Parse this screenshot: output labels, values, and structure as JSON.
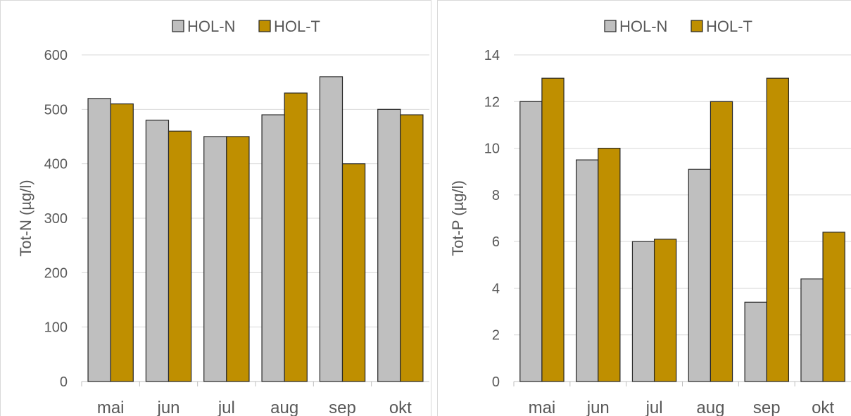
{
  "chart_data": [
    {
      "type": "bar",
      "categories": [
        "mai",
        "jun",
        "jul",
        "aug",
        "sep",
        "okt"
      ],
      "series": [
        {
          "name": "HOL-N",
          "values": [
            520,
            480,
            450,
            490,
            560,
            500
          ]
        },
        {
          "name": "HOL-T",
          "values": [
            510,
            460,
            450,
            530,
            400,
            490
          ]
        }
      ],
      "ylabel": "Tot-N (µg/l)",
      "ylim": [
        0,
        600
      ],
      "yticks": [
        "0",
        "100",
        "200",
        "300",
        "400",
        "500",
        "600"
      ],
      "grid": true,
      "legend": "top-center"
    },
    {
      "type": "bar",
      "categories": [
        "mai",
        "jun",
        "jul",
        "aug",
        "sep",
        "okt"
      ],
      "series": [
        {
          "name": "HOL-N",
          "values": [
            12,
            9.5,
            6,
            9.1,
            3.4,
            4.4
          ]
        },
        {
          "name": "HOL-T",
          "values": [
            13,
            10,
            6.1,
            12,
            13,
            6.4
          ]
        }
      ],
      "ylabel": "Tot-P (µg/l)",
      "ylim": [
        0,
        14
      ],
      "yticks": [
        "0",
        "2",
        "4",
        "6",
        "8",
        "10",
        "12",
        "14"
      ],
      "grid": true,
      "legend": "top-center"
    }
  ],
  "colors": {
    "HOL-N": "#bfbfbf",
    "HOL-T": "#bf8f00",
    "bar_stroke": "#262626",
    "grid": "#d9d9d9",
    "text": "#595959"
  }
}
